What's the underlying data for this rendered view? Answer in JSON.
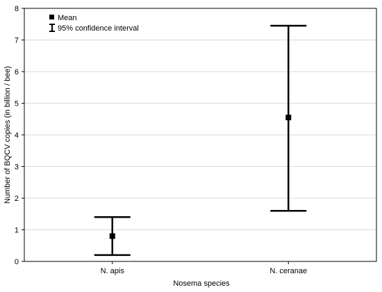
{
  "chart_data": {
    "type": "scatter",
    "title": "",
    "xlabel": "Nosema species",
    "ylabel": "Number of BQCV copies (in billion / bee)",
    "categories": [
      "N. apis",
      "N. ceranae"
    ],
    "ylim": [
      0,
      8
    ],
    "yticks": [
      0,
      1,
      2,
      3,
      4,
      5,
      6,
      7,
      8
    ],
    "grid": true,
    "legend_position": "top-left",
    "series": [
      {
        "name": "Mean",
        "values": [
          0.8,
          4.55
        ],
        "ci_low": [
          0.2,
          1.6
        ],
        "ci_high": [
          1.4,
          7.45
        ]
      }
    ],
    "legend": {
      "mean_label": "Mean",
      "ci_label": "95% confidence interval"
    },
    "colors": {
      "marks": "#000000",
      "grid": "#d9d9d9",
      "axis": "#000000"
    }
  }
}
